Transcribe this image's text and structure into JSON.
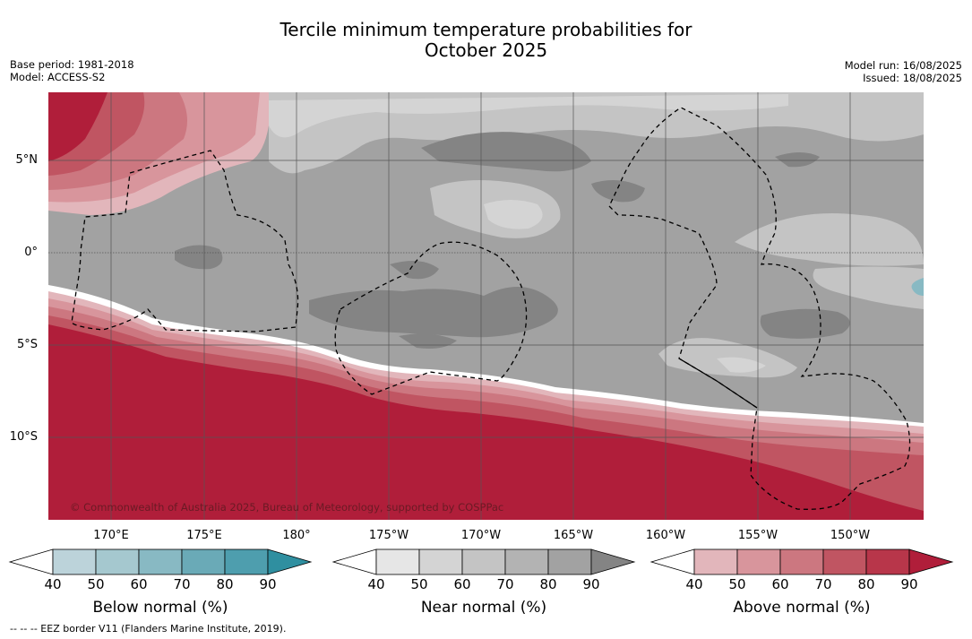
{
  "title_line1": "Tercile minimum temperature probabilities for",
  "title_line2": "October 2025",
  "base_period": "Base period: 1981-2018",
  "model": "Model: ACCESS-S2",
  "model_run": "Model run: 16/08/2025",
  "issued": "Issued: 18/08/2025",
  "copyright": "© Commonwealth of Australia 2025, Bureau of Meteorology, supported by COSPPac",
  "lat_labels": [
    "5°N",
    "0°",
    "5°S",
    "10°S"
  ],
  "lon_labels": [
    "170°E",
    "175°E",
    "180°",
    "175°W",
    "170°W",
    "165°W",
    "160°W",
    "155°W",
    "150°W"
  ],
  "colorbars": [
    {
      "title": "Below normal (%)",
      "ticks": [
        "40",
        "50",
        "60",
        "70",
        "80",
        "90"
      ],
      "colors": [
        "#ffffff",
        "#bcd3da",
        "#a5c8cf",
        "#88b9c3",
        "#6aaab7",
        "#4e9eae",
        "#2f8fa0"
      ]
    },
    {
      "title": "Near normal (%)",
      "ticks": [
        "40",
        "50",
        "60",
        "70",
        "80",
        "90"
      ],
      "colors": [
        "#ffffff",
        "#e6e6e6",
        "#d4d4d4",
        "#c4c4c4",
        "#b3b3b3",
        "#a2a2a2",
        "#848484"
      ]
    },
    {
      "title": "Above normal (%)",
      "ticks": [
        "40",
        "50",
        "60",
        "70",
        "80",
        "90"
      ],
      "colors": [
        "#ffffff",
        "#e2b6bb",
        "#d8959c",
        "#cc7780",
        "#c05562",
        "#b8364a",
        "#b01e3a"
      ]
    }
  ],
  "footnote": "--  --  -- EEZ border V11 (Flanders Marine Institute, 2019)."
}
